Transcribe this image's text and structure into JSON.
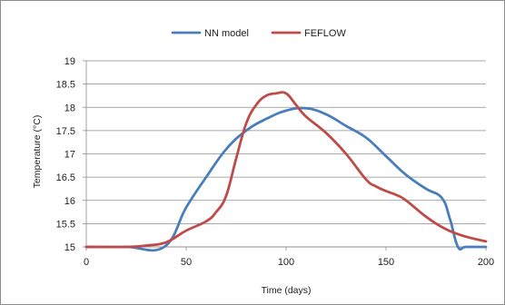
{
  "chart_data": {
    "type": "line",
    "title": "",
    "xlabel": "Time (days)",
    "ylabel": "Temperature (°C)",
    "xlim": [
      0,
      200
    ],
    "ylim": [
      15,
      19
    ],
    "x_ticks": [
      "0",
      "50",
      "100",
      "150",
      "200"
    ],
    "y_ticks": [
      "15",
      "15.5",
      "16",
      "16.5",
      "17",
      "17.5",
      "18",
      "18.5",
      "19"
    ],
    "grid": "horizontal",
    "legend_position": "top",
    "series": [
      {
        "name": "NN model",
        "color": "#4A7EBB",
        "x": [
          0,
          20,
          39,
          50,
          60,
          70,
          80,
          90,
          100,
          110,
          120,
          130,
          140,
          150,
          160,
          170,
          178,
          182,
          186,
          190,
          200
        ],
        "y": [
          15.0,
          15.0,
          15.0,
          15.85,
          16.5,
          17.1,
          17.5,
          17.75,
          17.93,
          17.98,
          17.85,
          17.6,
          17.35,
          16.95,
          16.55,
          16.25,
          16.05,
          15.6,
          15.0,
          15.0,
          15.0
        ]
      },
      {
        "name": "FEFLOW",
        "color": "#BE4B48",
        "x": [
          0,
          20,
          30,
          40,
          50,
          60,
          65,
          70,
          75,
          80,
          85,
          90,
          95,
          100,
          105,
          110,
          120,
          130,
          140,
          145,
          150,
          155,
          160,
          170,
          180,
          190,
          200
        ],
        "y": [
          15.0,
          15.0,
          15.03,
          15.1,
          15.35,
          15.55,
          15.75,
          16.1,
          16.9,
          17.65,
          18.05,
          18.25,
          18.3,
          18.3,
          18.05,
          17.8,
          17.45,
          17.0,
          16.45,
          16.3,
          16.2,
          16.12,
          16.0,
          15.65,
          15.38,
          15.22,
          15.12
        ]
      }
    ]
  }
}
